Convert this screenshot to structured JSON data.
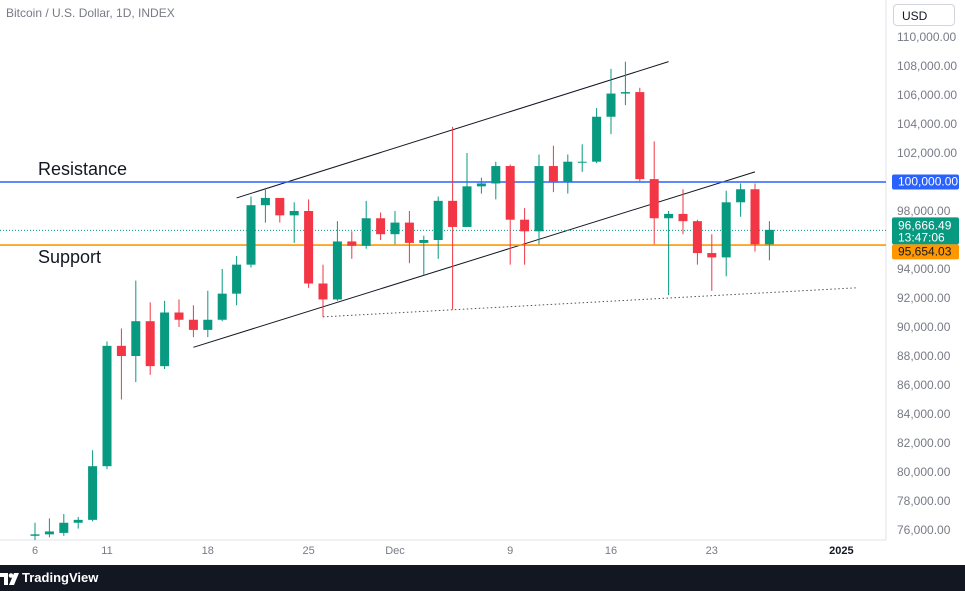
{
  "header": {
    "symbol_title": "Bitcoin / U.S. Dollar, 1D, INDEX",
    "currency_button": "USD"
  },
  "footer": {
    "brand": "TradingView"
  },
  "annotations": {
    "resistance_label": "Resistance",
    "support_label": "Support"
  },
  "colors": {
    "up": "#089981",
    "down": "#f23645",
    "resistance_line": "#2962ff",
    "support_line": "#ff9800",
    "trend_line": "#131722",
    "last_price_line": "#089981",
    "axis_text": "#787b86"
  },
  "chart_data": {
    "type": "candlestick",
    "title": "Bitcoin / U.S. Dollar, 1D, INDEX",
    "ylim": [
      75000,
      111000
    ],
    "y_ticks": [
      76000,
      78000,
      80000,
      82000,
      84000,
      86000,
      88000,
      90000,
      92000,
      94000,
      96000,
      98000,
      100000,
      102000,
      104000,
      106000,
      108000,
      110000
    ],
    "x_labels": [
      {
        "label": "6",
        "date": "2024-11-06"
      },
      {
        "label": "11",
        "date": "2024-11-11"
      },
      {
        "label": "18",
        "date": "2024-11-18"
      },
      {
        "label": "25",
        "date": "2024-11-25"
      },
      {
        "label": "Dec",
        "date": "2024-12-01"
      },
      {
        "label": "9",
        "date": "2024-12-09"
      },
      {
        "label": "16",
        "date": "2024-12-16"
      },
      {
        "label": "23",
        "date": "2024-12-23"
      },
      {
        "label": "2025",
        "date": "2025-01-01"
      }
    ],
    "price_labels": {
      "resistance": "100,000.00",
      "last_price": "96,666.49",
      "countdown": "13:47:06",
      "support": "95,654.03"
    },
    "levels": {
      "resistance": 100000,
      "support": 95654.03,
      "last_price": 96666.49
    },
    "trend_lines": [
      {
        "name": "channel-upper",
        "from": {
          "date": "2024-11-20",
          "price": 98900
        },
        "to": {
          "date": "2024-12-20",
          "price": 108300
        },
        "style": "solid"
      },
      {
        "name": "channel-lower",
        "from": {
          "date": "2024-11-17",
          "price": 88600
        },
        "to": {
          "date": "2024-12-26",
          "price": 100700
        },
        "style": "solid"
      },
      {
        "name": "higher-lows",
        "from": {
          "date": "2024-11-26",
          "price": 90700
        },
        "to": {
          "date": "2025-01-02",
          "price": 92700
        },
        "style": "dotted"
      }
    ],
    "candles": [
      {
        "date": "2024-11-06",
        "open": 75600,
        "high": 76500,
        "low": 75300,
        "close": 75700
      },
      {
        "date": "2024-11-07",
        "open": 75700,
        "high": 76800,
        "low": 75500,
        "close": 75900
      },
      {
        "date": "2024-11-08",
        "open": 75800,
        "high": 77100,
        "low": 75600,
        "close": 76500
      },
      {
        "date": "2024-11-09",
        "open": 76500,
        "high": 76900,
        "low": 76100,
        "close": 76700
      },
      {
        "date": "2024-11-10",
        "open": 76700,
        "high": 81500,
        "low": 76600,
        "close": 80400
      },
      {
        "date": "2024-11-11",
        "open": 80400,
        "high": 89000,
        "low": 80200,
        "close": 88700
      },
      {
        "date": "2024-11-12",
        "open": 88700,
        "high": 89900,
        "low": 85000,
        "close": 88000
      },
      {
        "date": "2024-11-13",
        "open": 88000,
        "high": 93200,
        "low": 86200,
        "close": 90400
      },
      {
        "date": "2024-11-14",
        "open": 90400,
        "high": 91700,
        "low": 86700,
        "close": 87300
      },
      {
        "date": "2024-11-15",
        "open": 87300,
        "high": 91800,
        "low": 87100,
        "close": 91000
      },
      {
        "date": "2024-11-16",
        "open": 91000,
        "high": 91900,
        "low": 90000,
        "close": 90500
      },
      {
        "date": "2024-11-17",
        "open": 90500,
        "high": 91500,
        "low": 89300,
        "close": 89800
      },
      {
        "date": "2024-11-18",
        "open": 89800,
        "high": 92500,
        "low": 89300,
        "close": 90500
      },
      {
        "date": "2024-11-19",
        "open": 90500,
        "high": 94000,
        "low": 90400,
        "close": 92300
      },
      {
        "date": "2024-11-20",
        "open": 92300,
        "high": 94900,
        "low": 91500,
        "close": 94300
      },
      {
        "date": "2024-11-21",
        "open": 94300,
        "high": 99000,
        "low": 94100,
        "close": 98400
      },
      {
        "date": "2024-11-22",
        "open": 98400,
        "high": 99600,
        "low": 97200,
        "close": 98900
      },
      {
        "date": "2024-11-23",
        "open": 98900,
        "high": 98900,
        "low": 97200,
        "close": 97700
      },
      {
        "date": "2024-11-24",
        "open": 97700,
        "high": 98600,
        "low": 95800,
        "close": 98000
      },
      {
        "date": "2024-11-25",
        "open": 98000,
        "high": 98800,
        "low": 92700,
        "close": 93000
      },
      {
        "date": "2024-11-26",
        "open": 93000,
        "high": 94300,
        "low": 90700,
        "close": 91900
      },
      {
        "date": "2024-11-27",
        "open": 91900,
        "high": 97300,
        "low": 91800,
        "close": 95900
      },
      {
        "date": "2024-11-28",
        "open": 95900,
        "high": 96600,
        "low": 94700,
        "close": 95600
      },
      {
        "date": "2024-11-29",
        "open": 95600,
        "high": 98700,
        "low": 95400,
        "close": 97500
      },
      {
        "date": "2024-11-30",
        "open": 97500,
        "high": 97900,
        "low": 96000,
        "close": 96400
      },
      {
        "date": "2024-12-01",
        "open": 96400,
        "high": 98000,
        "low": 95700,
        "close": 97200
      },
      {
        "date": "2024-12-02",
        "open": 97200,
        "high": 98000,
        "low": 94400,
        "close": 95800
      },
      {
        "date": "2024-12-03",
        "open": 95800,
        "high": 96300,
        "low": 93600,
        "close": 96000
      },
      {
        "date": "2024-12-04",
        "open": 96000,
        "high": 99000,
        "low": 94700,
        "close": 98700
      },
      {
        "date": "2024-12-05",
        "open": 98700,
        "high": 103800,
        "low": 91200,
        "close": 96900
      },
      {
        "date": "2024-12-06",
        "open": 96900,
        "high": 102000,
        "low": 96900,
        "close": 99700
      },
      {
        "date": "2024-12-07",
        "open": 99700,
        "high": 100300,
        "low": 99200,
        "close": 99900
      },
      {
        "date": "2024-12-08",
        "open": 99900,
        "high": 101400,
        "low": 98800,
        "close": 101100
      },
      {
        "date": "2024-12-09",
        "open": 101100,
        "high": 101200,
        "low": 94300,
        "close": 97400
      },
      {
        "date": "2024-12-10",
        "open": 97400,
        "high": 98200,
        "low": 94300,
        "close": 96600
      },
      {
        "date": "2024-12-11",
        "open": 96600,
        "high": 101900,
        "low": 95700,
        "close": 101100
      },
      {
        "date": "2024-12-12",
        "open": 101100,
        "high": 102500,
        "low": 99300,
        "close": 100000
      },
      {
        "date": "2024-12-13",
        "open": 100000,
        "high": 101900,
        "low": 99200,
        "close": 101400
      },
      {
        "date": "2024-12-14",
        "open": 101400,
        "high": 102600,
        "low": 100700,
        "close": 101400
      },
      {
        "date": "2024-12-15",
        "open": 101400,
        "high": 105100,
        "low": 101300,
        "close": 104500
      },
      {
        "date": "2024-12-16",
        "open": 104500,
        "high": 107800,
        "low": 103300,
        "close": 106100
      },
      {
        "date": "2024-12-17",
        "open": 106100,
        "high": 108300,
        "low": 105300,
        "close": 106200
      },
      {
        "date": "2024-12-18",
        "open": 106200,
        "high": 106500,
        "low": 100000,
        "close": 100200
      },
      {
        "date": "2024-12-19",
        "open": 100200,
        "high": 102800,
        "low": 95700,
        "close": 97500
      },
      {
        "date": "2024-12-20",
        "open": 97500,
        "high": 98000,
        "low": 92200,
        "close": 97800
      },
      {
        "date": "2024-12-21",
        "open": 97800,
        "high": 99500,
        "low": 96400,
        "close": 97300
      },
      {
        "date": "2024-12-22",
        "open": 97300,
        "high": 97400,
        "low": 94300,
        "close": 95100
      },
      {
        "date": "2024-12-23",
        "open": 95100,
        "high": 96400,
        "low": 92500,
        "close": 94800
      },
      {
        "date": "2024-12-24",
        "open": 94800,
        "high": 99400,
        "low": 93500,
        "close": 98600
      },
      {
        "date": "2024-12-25",
        "open": 98600,
        "high": 99900,
        "low": 97600,
        "close": 99500
      },
      {
        "date": "2024-12-26",
        "open": 99500,
        "high": 99900,
        "low": 95200,
        "close": 95700
      },
      {
        "date": "2024-12-27",
        "open": 95700,
        "high": 97300,
        "low": 94600,
        "close": 96700
      }
    ]
  }
}
